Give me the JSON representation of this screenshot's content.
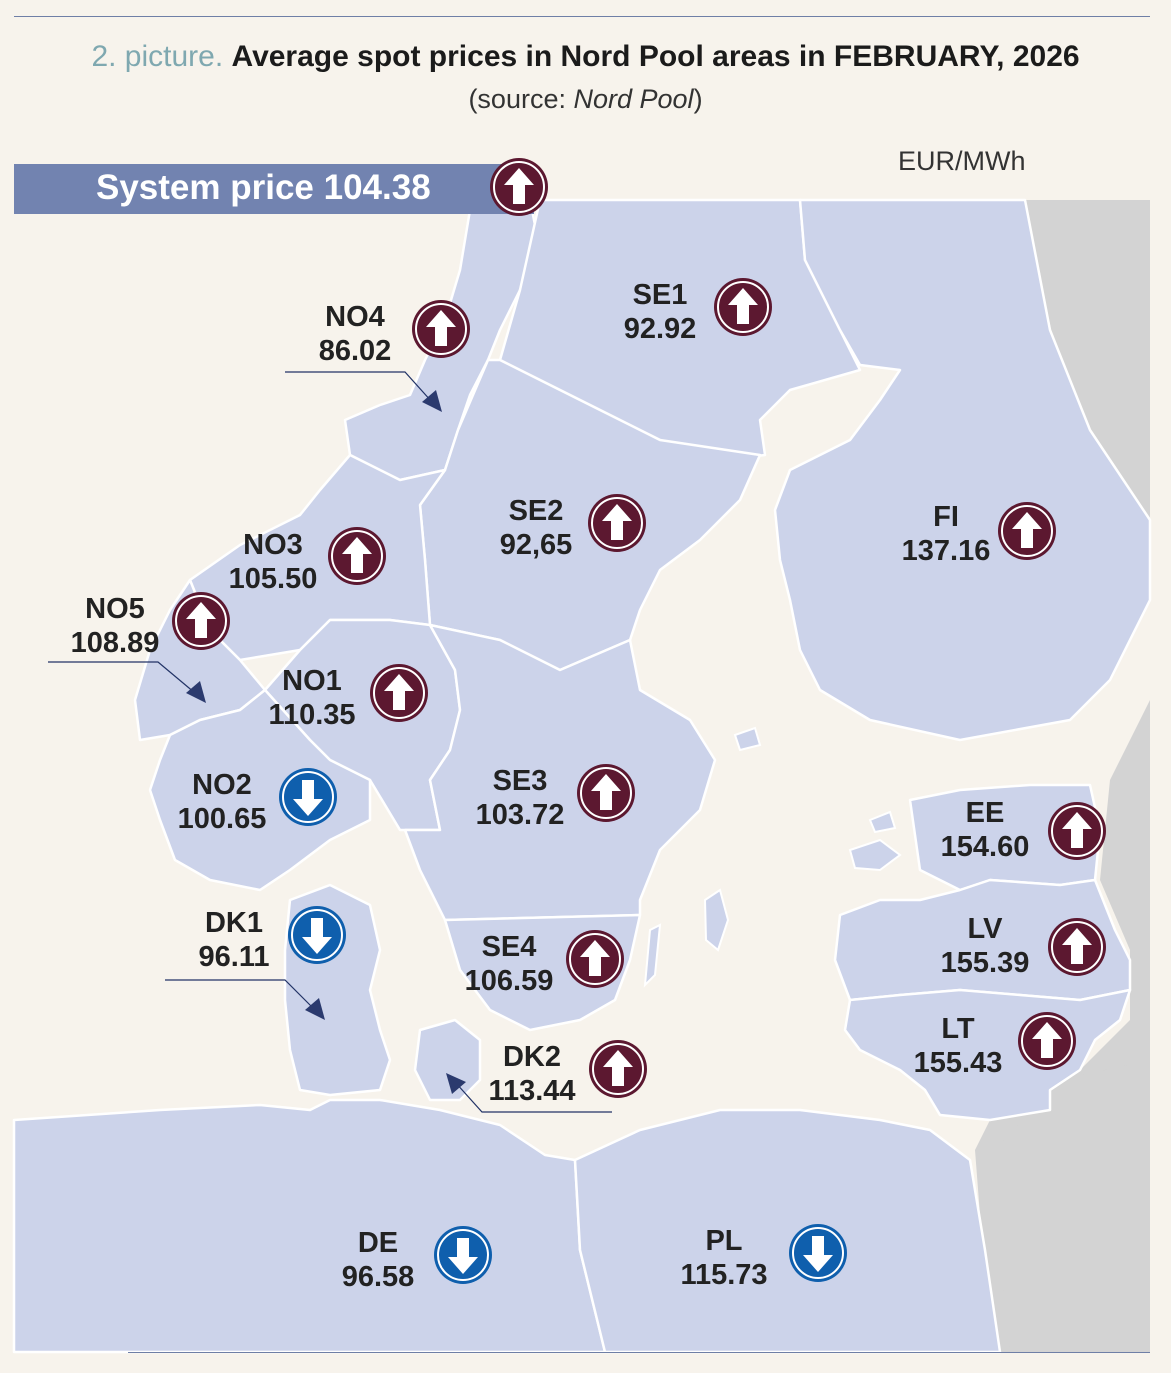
{
  "title": {
    "prefix": "2. picture.",
    "main": "Average spot prices in Nord Pool areas in FEBRUARY, 2026",
    "source_prefix": "(source: ",
    "source_name": "Nord Pool",
    "source_suffix": ")"
  },
  "unit": "EUR/MWh",
  "system_price": {
    "label": "System price 104.38",
    "direction": "up"
  },
  "colors": {
    "area": "#ccd3ea",
    "sea": "#f7f3ec",
    "non_member": "#d3d3d3",
    "up": "#5c1830",
    "down": "#0f5fad",
    "bar": "#7283b0"
  },
  "areas": [
    {
      "code": "NO4",
      "price": "86.02",
      "direction": "up"
    },
    {
      "code": "SE1",
      "price": "92.92",
      "direction": "up"
    },
    {
      "code": "SE2",
      "price": "92,65",
      "direction": "up"
    },
    {
      "code": "FI",
      "price": "137.16",
      "direction": "up"
    },
    {
      "code": "NO3",
      "price": "105.50",
      "direction": "up"
    },
    {
      "code": "NO5",
      "price": "108.89",
      "direction": "up"
    },
    {
      "code": "NO1",
      "price": "110.35",
      "direction": "up"
    },
    {
      "code": "NO2",
      "price": "100.65",
      "direction": "down"
    },
    {
      "code": "SE3",
      "price": "103.72",
      "direction": "up"
    },
    {
      "code": "EE",
      "price": "154.60",
      "direction": "up"
    },
    {
      "code": "DK1",
      "price": "96.11",
      "direction": "down"
    },
    {
      "code": "SE4",
      "price": "106.59",
      "direction": "up"
    },
    {
      "code": "LV",
      "price": "155.39",
      "direction": "up"
    },
    {
      "code": "LT",
      "price": "155.43",
      "direction": "up"
    },
    {
      "code": "DK2",
      "price": "113.44",
      "direction": "up"
    },
    {
      "code": "DE",
      "price": "96.58",
      "direction": "down"
    },
    {
      "code": "PL",
      "price": "115.73",
      "direction": "down"
    }
  ]
}
